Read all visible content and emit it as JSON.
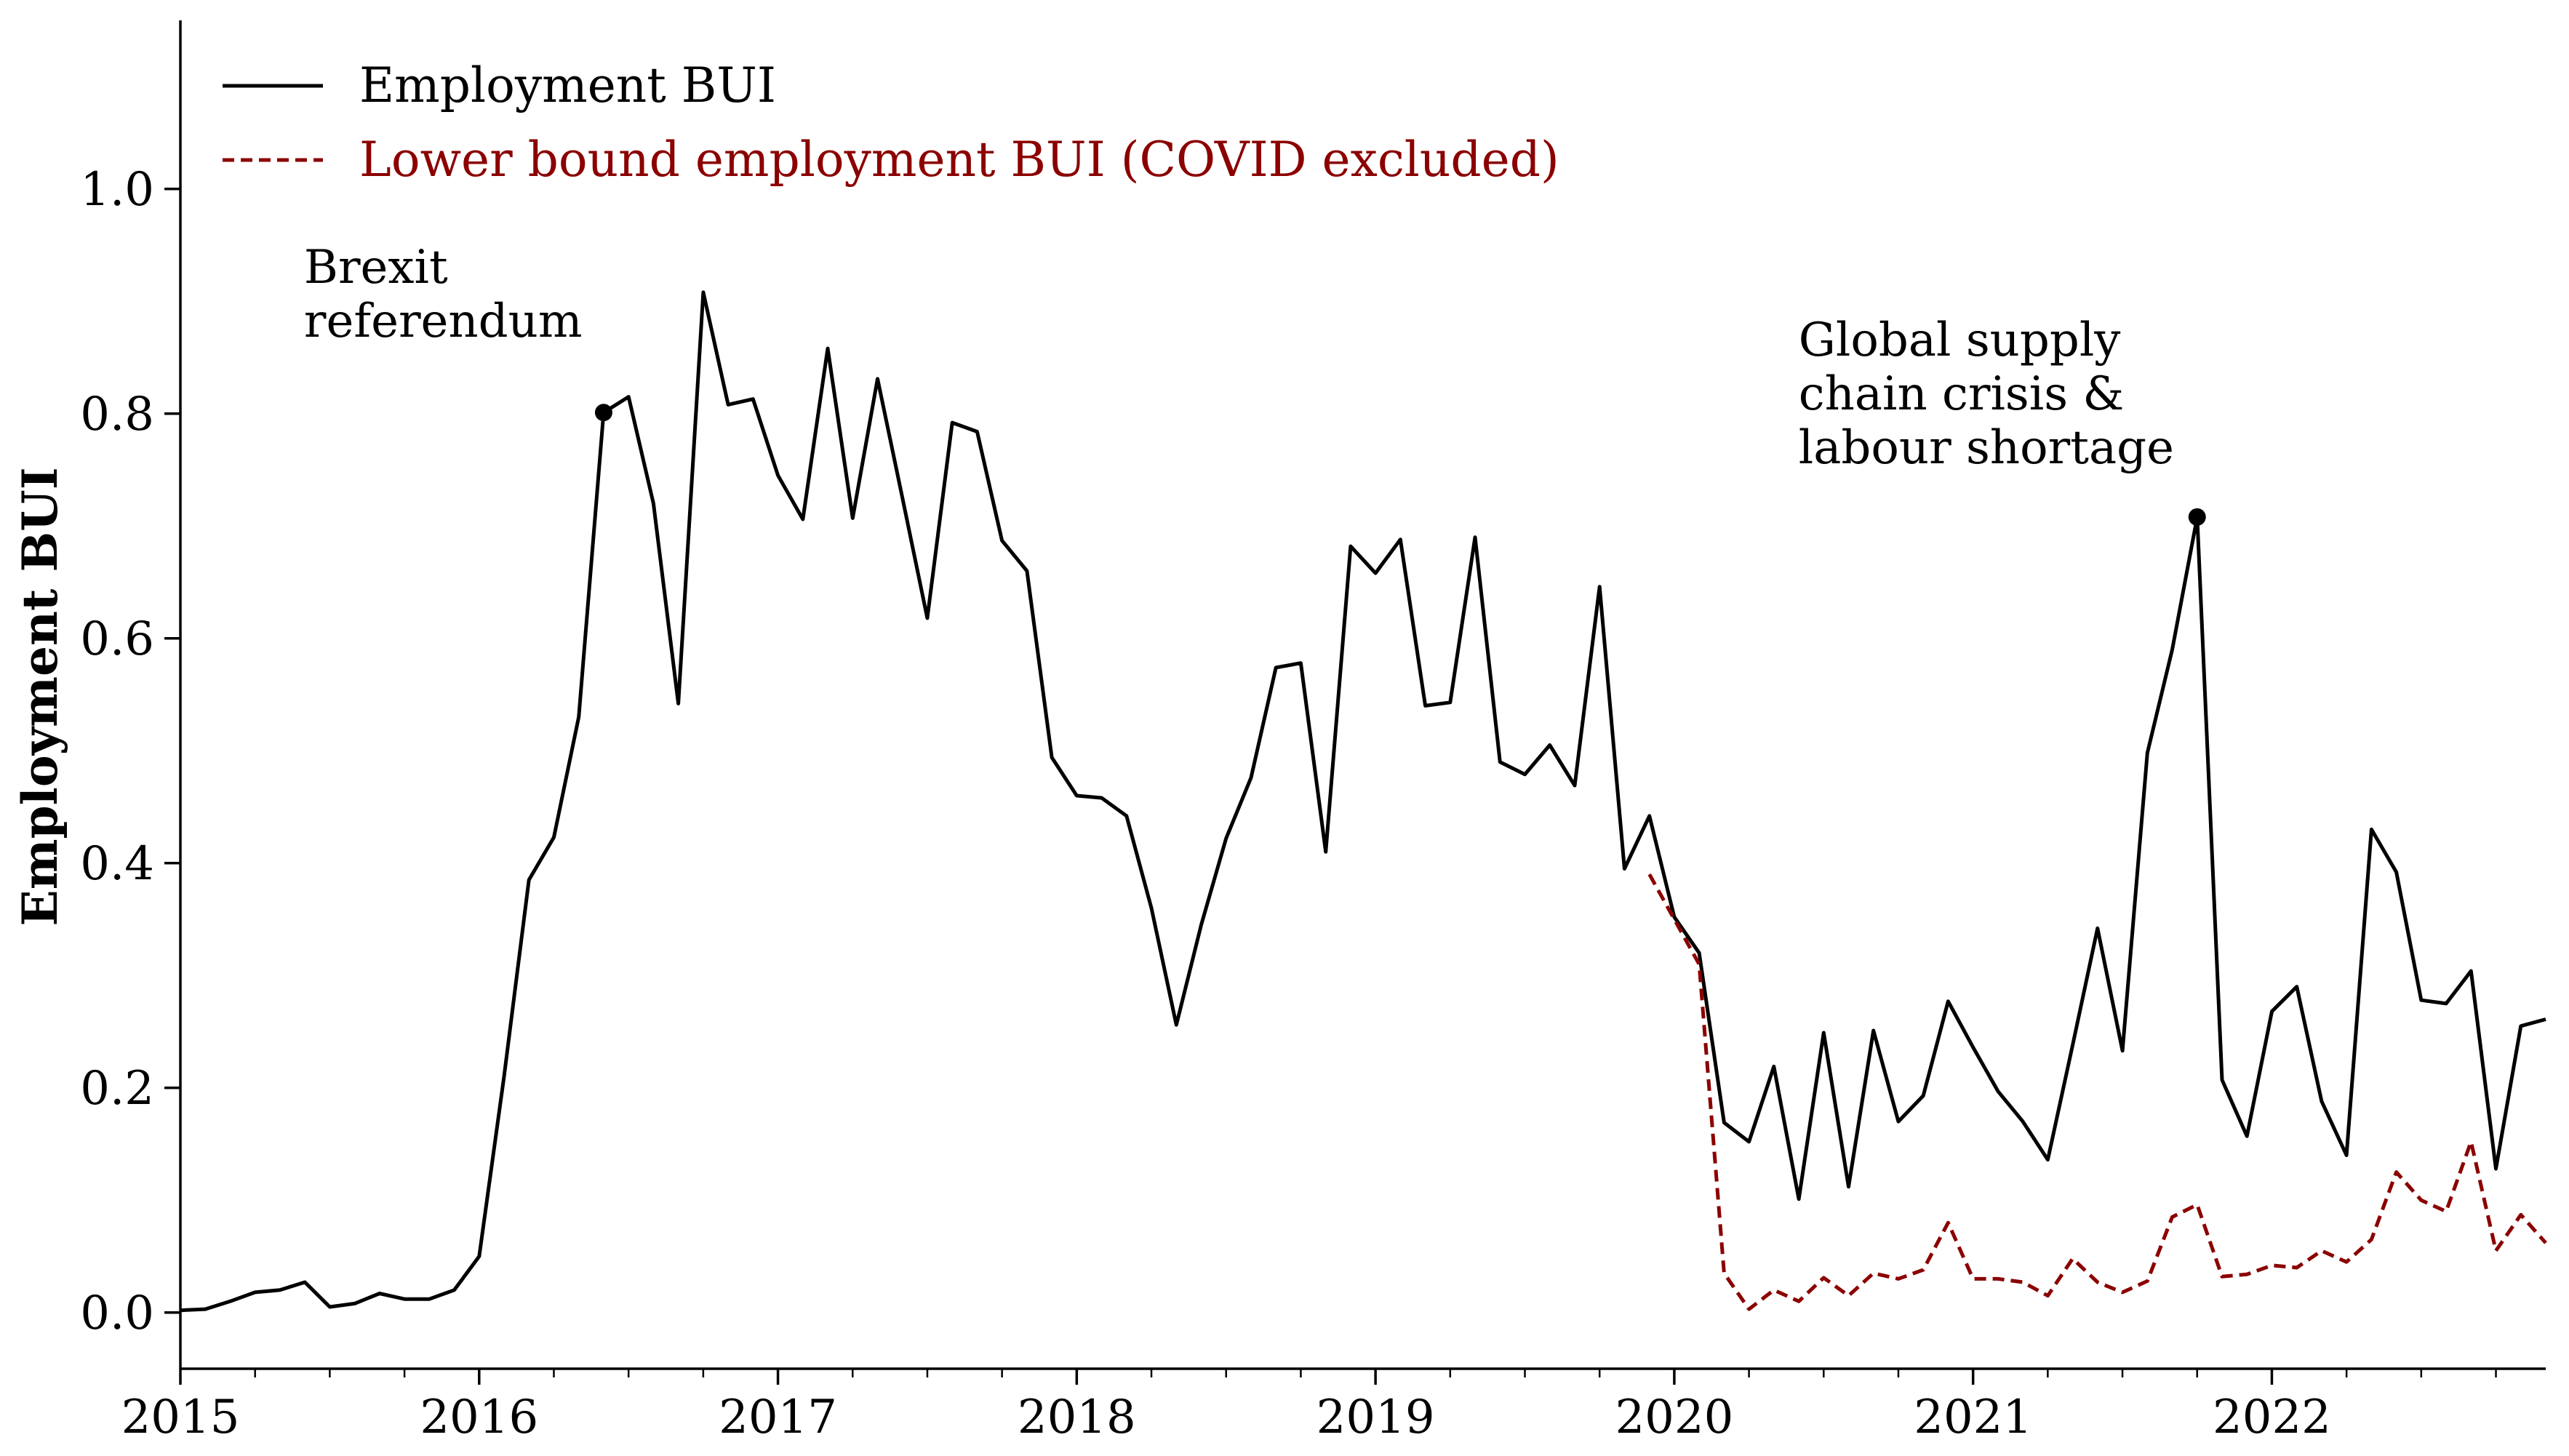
{
  "chart_data": {
    "type": "line",
    "xlabel": "",
    "ylabel": "Employment BUI",
    "xlim": [
      "2015-01",
      "2022-12"
    ],
    "ylim": [
      -0.05,
      1.15
    ],
    "x_ticks": [
      "2015",
      "2016",
      "2017",
      "2018",
      "2019",
      "2020",
      "2021",
      "2022"
    ],
    "y_ticks": [
      "0.0",
      "0.2",
      "0.4",
      "0.6",
      "0.8",
      "1.0"
    ],
    "legend_position": "top-left",
    "series": [
      {
        "name": "Employment BUI",
        "color": "#000000",
        "style": "solid",
        "x": [
          "2015-01",
          "2015-02",
          "2015-03",
          "2015-04",
          "2015-05",
          "2015-06",
          "2015-07",
          "2015-08",
          "2015-09",
          "2015-10",
          "2015-11",
          "2015-12",
          "2016-01",
          "2016-02",
          "2016-03",
          "2016-04",
          "2016-05",
          "2016-06",
          "2016-07",
          "2016-08",
          "2016-09",
          "2016-10",
          "2016-11",
          "2016-12",
          "2017-01",
          "2017-02",
          "2017-03",
          "2017-04",
          "2017-05",
          "2017-06",
          "2017-07",
          "2017-08",
          "2017-09",
          "2017-10",
          "2017-11",
          "2017-12",
          "2018-01",
          "2018-02",
          "2018-03",
          "2018-04",
          "2018-05",
          "2018-06",
          "2018-07",
          "2018-08",
          "2018-09",
          "2018-10",
          "2018-11",
          "2018-12",
          "2019-01",
          "2019-02",
          "2019-03",
          "2019-04",
          "2019-05",
          "2019-06",
          "2019-07",
          "2019-08",
          "2019-09",
          "2019-10",
          "2019-11",
          "2019-12",
          "2020-01",
          "2020-02",
          "2020-03",
          "2020-04",
          "2020-05",
          "2020-06",
          "2020-07",
          "2020-08",
          "2020-09",
          "2020-10",
          "2020-11",
          "2020-12",
          "2021-01",
          "2021-02",
          "2021-03",
          "2021-04",
          "2021-05",
          "2021-06",
          "2021-07",
          "2021-08",
          "2021-09",
          "2021-10",
          "2021-11",
          "2021-12",
          "2022-01",
          "2022-02",
          "2022-03",
          "2022-04",
          "2022-05",
          "2022-06",
          "2022-07",
          "2022-08",
          "2022-09",
          "2022-10",
          "2022-11",
          "2022-12"
        ],
        "values": [
          0.002,
          0.003,
          0.01,
          0.018,
          0.02,
          0.027,
          0.005,
          0.008,
          0.017,
          0.012,
          0.012,
          0.02,
          0.05,
          0.21,
          0.385,
          0.423,
          0.53,
          0.801,
          0.815,
          0.72,
          0.542,
          0.908,
          0.808,
          0.813,
          0.745,
          0.706,
          0.858,
          0.707,
          0.831,
          0.725,
          0.618,
          0.792,
          0.784,
          0.687,
          0.66,
          0.494,
          0.46,
          0.458,
          0.442,
          0.36,
          0.256,
          0.345,
          0.422,
          0.476,
          0.574,
          0.578,
          0.41,
          0.682,
          0.658,
          0.688,
          0.54,
          0.543,
          0.69,
          0.49,
          0.479,
          0.505,
          0.469,
          0.646,
          0.395,
          0.442,
          0.352,
          0.32,
          0.169,
          0.152,
          0.219,
          0.101,
          0.249,
          0.112,
          0.251,
          0.17,
          0.193,
          0.277,
          0.236,
          0.197,
          0.17,
          0.136,
          0.238,
          0.342,
          0.233,
          0.498,
          0.59,
          0.708,
          0.207,
          0.157,
          0.268,
          0.29,
          0.188,
          0.14,
          0.43,
          0.392,
          0.278,
          0.275,
          0.304,
          0.128,
          0.255,
          0.261
        ]
      },
      {
        "name": "Lower bound employment BUI (COVID excluded)",
        "color": "#8b0000",
        "style": "dashed",
        "x": [
          "2019-12",
          "2020-01",
          "2020-02",
          "2020-03",
          "2020-04",
          "2020-05",
          "2020-06",
          "2020-07",
          "2020-08",
          "2020-09",
          "2020-10",
          "2020-11",
          "2020-12",
          "2021-01",
          "2021-02",
          "2021-03",
          "2021-04",
          "2021-05",
          "2021-06",
          "2021-07",
          "2021-08",
          "2021-09",
          "2021-10",
          "2021-11",
          "2021-12",
          "2022-01",
          "2022-02",
          "2022-03",
          "2022-04",
          "2022-05",
          "2022-06",
          "2022-07",
          "2022-08",
          "2022-09",
          "2022-10",
          "2022-11",
          "2022-12"
        ],
        "values": [
          0.39,
          0.35,
          0.31,
          0.035,
          0.003,
          0.02,
          0.01,
          0.031,
          0.015,
          0.035,
          0.03,
          0.038,
          0.08,
          0.03,
          0.03,
          0.027,
          0.015,
          0.048,
          0.027,
          0.018,
          0.028,
          0.085,
          0.096,
          0.032,
          0.034,
          0.042,
          0.04,
          0.055,
          0.045,
          0.065,
          0.125,
          0.1,
          0.09,
          0.152,
          0.055,
          0.087,
          0.062
        ]
      }
    ],
    "annotations": [
      {
        "label": [
          "Brexit",
          "referendum"
        ],
        "x": "2016-06",
        "y": 0.801
      },
      {
        "label": [
          "Global supply",
          "chain crisis &",
          "labour shortage"
        ],
        "x": "2021-10",
        "y": 0.708
      }
    ]
  }
}
